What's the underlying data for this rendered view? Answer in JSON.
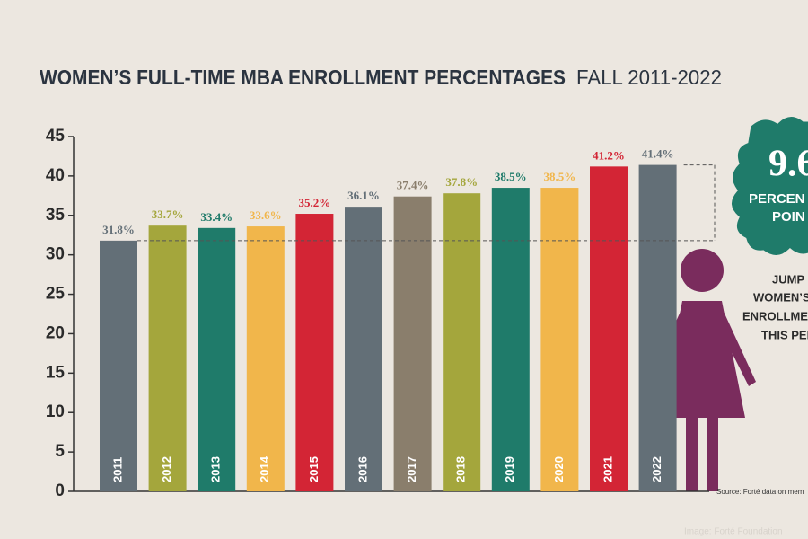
{
  "chart_data": {
    "type": "bar",
    "title": "WOMEN’S FULL-TIME MBA ENROLLMENT PERCENTAGES",
    "subtitle": "FALL 2011-2022",
    "categories": [
      "2011",
      "2012",
      "2013",
      "2014",
      "2015",
      "2016",
      "2017",
      "2018",
      "2019",
      "2020",
      "2021",
      "2022"
    ],
    "values": [
      31.8,
      33.7,
      33.4,
      33.6,
      35.2,
      36.1,
      37.4,
      37.8,
      38.5,
      38.5,
      41.2,
      41.4
    ],
    "value_labels": [
      "31.8%",
      "33.7%",
      "33.4%",
      "33.6%",
      "35.2%",
      "36.1%",
      "37.4%",
      "37.8%",
      "38.5%",
      "38.5%",
      "41.2%",
      "41.4%"
    ],
    "colors": [
      "#636f77",
      "#a4a63c",
      "#1f7b6a",
      "#f1b64b",
      "#d32535",
      "#636f77",
      "#8a7e6c",
      "#a4a63c",
      "#1f7b6a",
      "#f1b64b",
      "#d32535",
      "#636f77"
    ],
    "ylim": [
      0,
      45
    ],
    "yticks": [
      0,
      5,
      10,
      15,
      20,
      25,
      30,
      35,
      40,
      45
    ],
    "badge": {
      "value": 9.6,
      "lines": [
        "PERCEN",
        "POIN"
      ]
    },
    "caption": [
      "JUMP",
      "WOMEN’S",
      "ENROLLMEN",
      "THIS PER"
    ],
    "source": "Source: Forté data on mem",
    "credit": "Image: Forté Foundation"
  }
}
